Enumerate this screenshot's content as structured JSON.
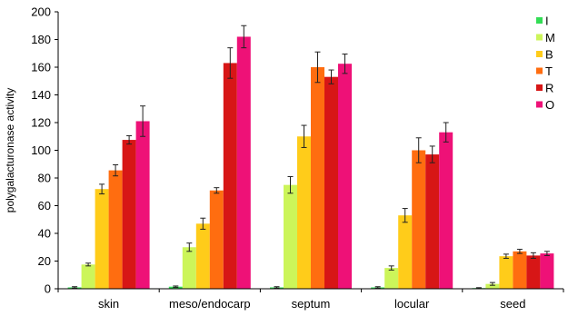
{
  "chart_data": {
    "type": "bar",
    "ylabel": "polygalacturonase activity",
    "xlabel": "",
    "title": "",
    "ylim": [
      0,
      200
    ],
    "yticks": [
      0,
      20,
      40,
      60,
      80,
      100,
      120,
      140,
      160,
      180,
      200
    ],
    "grid": false,
    "legend_position": "top-right",
    "categories": [
      "skin",
      "meso/endocarp",
      "septum",
      "locular",
      "seed"
    ],
    "series": [
      {
        "name": "I",
        "color": "#33dd55",
        "values": [
          1,
          1.5,
          1,
          1,
          0.5
        ],
        "errors": [
          0.5,
          0.5,
          0.5,
          0.5,
          0.3
        ]
      },
      {
        "name": "M",
        "color": "#ccf55a",
        "values": [
          17.5,
          30,
          75,
          15,
          3.5
        ],
        "errors": [
          1,
          3,
          6,
          1.5,
          1
        ]
      },
      {
        "name": "B",
        "color": "#ffcc1a",
        "values": [
          72,
          47,
          110,
          53,
          23.5
        ],
        "errors": [
          3.5,
          4,
          8,
          5,
          1.5
        ]
      },
      {
        "name": "T",
        "color": "#ff6d10",
        "values": [
          85.5,
          71,
          160,
          100,
          27
        ],
        "errors": [
          4,
          2,
          11,
          9,
          1.5
        ]
      },
      {
        "name": "R",
        "color": "#d71616",
        "values": [
          107.5,
          163,
          153,
          97,
          24
        ],
        "errors": [
          3,
          11,
          5,
          6,
          2
        ]
      },
      {
        "name": "O",
        "color": "#ee1177",
        "values": [
          121,
          182,
          162.5,
          113,
          25.5
        ],
        "errors": [
          11,
          8,
          7,
          7,
          1.5
        ]
      }
    ]
  }
}
